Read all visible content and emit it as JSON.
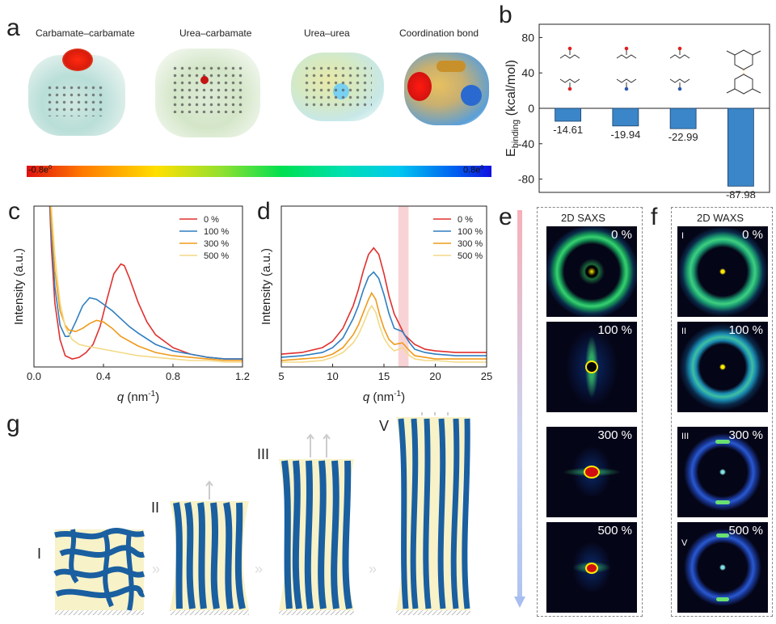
{
  "panels": {
    "a": "a",
    "b": "b",
    "c": "c",
    "d": "d",
    "e": "e",
    "f": "f",
    "g": "g"
  },
  "panel_a": {
    "titles": [
      "Carbamate–carbamate",
      "Urea–carbamate",
      "Urea–urea",
      "Coordination bond"
    ],
    "colorbar_min": "-0.8e",
    "colorbar_max": "0.8e",
    "colorbar_sup": "0"
  },
  "panel_e": {
    "title": "2D SAXS",
    "labels": [
      "0 %",
      "100 %",
      "300 %",
      "500 %"
    ]
  },
  "panel_f": {
    "title": "2D WAXS",
    "labels": [
      "0 %",
      "100 %",
      "300 %",
      "500 %"
    ],
    "romans": [
      "I",
      "II",
      "III",
      "V"
    ]
  },
  "panel_g": {
    "stages": [
      "I",
      "II",
      "III",
      "V"
    ]
  },
  "chart_data": [
    {
      "id": "b",
      "type": "bar",
      "categories": [
        "Carbamate–carbamate",
        "Urea–carbamate",
        "Urea–urea",
        "Coordination bond"
      ],
      "values": [
        -14.61,
        -19.94,
        -22.99,
        -87.98
      ],
      "value_labels": [
        "-14.61",
        "-19.94",
        "-22.99",
        "-87.98"
      ],
      "ylabel_main": "E",
      "ylabel_sub": "binding",
      "ylabel_unit": "(kcal/mol)",
      "ylim": [
        -95,
        95
      ],
      "yticks": [
        -80,
        -40,
        0,
        40,
        80
      ],
      "ytick_labels": [
        "-80",
        "-40",
        "0",
        "40",
        "80"
      ],
      "color": "#3a86c8"
    },
    {
      "id": "c",
      "type": "line",
      "xlabel": "q",
      "xlabel_unit": "(nm",
      "xlabel_sup": "-1",
      "xlabel_close": ")",
      "ylabel": "Intensity (a.u.)",
      "xlim": [
        0,
        1.2
      ],
      "ylim": [
        0,
        1
      ],
      "xticks": [
        0.0,
        0.4,
        0.8,
        1.2
      ],
      "xtick_labels": [
        "0.0",
        "0.4",
        "0.8",
        "1.2"
      ],
      "series": [
        {
          "name": "0 %",
          "color": "#e0302e",
          "x": [
            0.08,
            0.1,
            0.12,
            0.15,
            0.18,
            0.22,
            0.26,
            0.3,
            0.34,
            0.38,
            0.42,
            0.46,
            0.5,
            0.52,
            0.55,
            0.6,
            0.65,
            0.7,
            0.8,
            0.9,
            1.0,
            1.1,
            1.2
          ],
          "y": [
            1.3,
            0.75,
            0.4,
            0.17,
            0.07,
            0.05,
            0.06,
            0.09,
            0.14,
            0.25,
            0.42,
            0.58,
            0.64,
            0.63,
            0.55,
            0.4,
            0.28,
            0.2,
            0.12,
            0.08,
            0.06,
            0.05,
            0.05
          ]
        },
        {
          "name": "100 %",
          "color": "#2f7ec0",
          "x": [
            0.08,
            0.1,
            0.12,
            0.15,
            0.18,
            0.2,
            0.24,
            0.28,
            0.32,
            0.36,
            0.4,
            0.45,
            0.5,
            0.55,
            0.6,
            0.7,
            0.8,
            0.9,
            1.0,
            1.1,
            1.2
          ],
          "y": [
            1.3,
            0.82,
            0.5,
            0.26,
            0.19,
            0.19,
            0.28,
            0.38,
            0.43,
            0.42,
            0.39,
            0.35,
            0.3,
            0.25,
            0.21,
            0.14,
            0.1,
            0.08,
            0.06,
            0.05,
            0.05
          ]
        },
        {
          "name": "300 %",
          "color": "#ef9a1a",
          "x": [
            0.08,
            0.1,
            0.12,
            0.15,
            0.18,
            0.2,
            0.24,
            0.28,
            0.32,
            0.36,
            0.4,
            0.45,
            0.5,
            0.6,
            0.7,
            0.8,
            0.9,
            1.0,
            1.1,
            1.2
          ],
          "y": [
            1.3,
            0.9,
            0.6,
            0.35,
            0.26,
            0.23,
            0.22,
            0.24,
            0.27,
            0.29,
            0.28,
            0.24,
            0.19,
            0.13,
            0.09,
            0.07,
            0.06,
            0.05,
            0.04,
            0.04
          ]
        },
        {
          "name": "500 %",
          "color": "#f3d985",
          "x": [
            0.08,
            0.1,
            0.12,
            0.15,
            0.18,
            0.22,
            0.26,
            0.3,
            0.35,
            0.4,
            0.5,
            0.6,
            0.7,
            0.8,
            0.9,
            1.0,
            1.1,
            1.2
          ],
          "y": [
            1.3,
            1.0,
            0.7,
            0.4,
            0.25,
            0.17,
            0.14,
            0.13,
            0.12,
            0.11,
            0.09,
            0.07,
            0.06,
            0.05,
            0.04,
            0.04,
            0.03,
            0.03
          ]
        }
      ]
    },
    {
      "id": "d",
      "type": "line",
      "xlabel": "q",
      "xlabel_unit": "(nm",
      "xlabel_sup": "-1",
      "xlabel_close": ")",
      "ylabel": "Intensity (a.u.)",
      "xlim": [
        5,
        25
      ],
      "ylim": [
        0,
        1
      ],
      "xticks": [
        5,
        10,
        15,
        20,
        25
      ],
      "xtick_labels": [
        "5",
        "10",
        "15",
        "20",
        "25"
      ],
      "highlight_band": [
        16.4,
        17.4
      ],
      "series": [
        {
          "name": "0 %",
          "color": "#e0302e",
          "x": [
            5,
            7,
            9,
            10,
            11,
            12,
            12.5,
            13,
            13.5,
            14,
            14.5,
            15,
            15.5,
            16,
            17,
            18,
            19,
            20,
            22,
            25
          ],
          "y": [
            0.08,
            0.09,
            0.12,
            0.16,
            0.24,
            0.38,
            0.48,
            0.6,
            0.7,
            0.74,
            0.7,
            0.58,
            0.44,
            0.33,
            0.2,
            0.14,
            0.11,
            0.1,
            0.09,
            0.09
          ]
        },
        {
          "name": "100 %",
          "color": "#2f7ec0",
          "x": [
            5,
            7,
            9,
            10,
            11,
            12,
            12.5,
            13,
            13.5,
            14,
            14.5,
            15,
            15.5,
            16,
            16.8,
            17.5,
            18,
            19,
            20,
            22,
            25
          ],
          "y": [
            0.06,
            0.07,
            0.09,
            0.12,
            0.18,
            0.3,
            0.38,
            0.48,
            0.56,
            0.59,
            0.55,
            0.45,
            0.33,
            0.24,
            0.22,
            0.15,
            0.11,
            0.09,
            0.08,
            0.07,
            0.07
          ]
        },
        {
          "name": "300 %",
          "color": "#ef9a1a",
          "x": [
            5,
            7,
            9,
            10,
            11,
            12,
            12.5,
            13,
            13.5,
            13.8,
            14.2,
            14.6,
            15,
            15.5,
            16,
            16.8,
            17.5,
            18,
            19,
            20,
            22,
            25
          ],
          "y": [
            0.04,
            0.05,
            0.06,
            0.08,
            0.12,
            0.2,
            0.26,
            0.34,
            0.42,
            0.46,
            0.42,
            0.32,
            0.24,
            0.17,
            0.14,
            0.15,
            0.1,
            0.07,
            0.06,
            0.05,
            0.05,
            0.05
          ]
        },
        {
          "name": "500 %",
          "color": "#f3d985",
          "x": [
            5,
            7,
            9,
            10,
            11,
            12,
            12.5,
            13,
            13.5,
            13.8,
            14.2,
            14.6,
            15,
            15.5,
            16,
            16.8,
            17.5,
            18,
            19,
            20,
            22,
            25
          ],
          "y": [
            0.03,
            0.03,
            0.04,
            0.06,
            0.09,
            0.15,
            0.2,
            0.27,
            0.35,
            0.38,
            0.34,
            0.25,
            0.18,
            0.13,
            0.1,
            0.12,
            0.07,
            0.05,
            0.04,
            0.04,
            0.03,
            0.03
          ]
        }
      ]
    }
  ]
}
